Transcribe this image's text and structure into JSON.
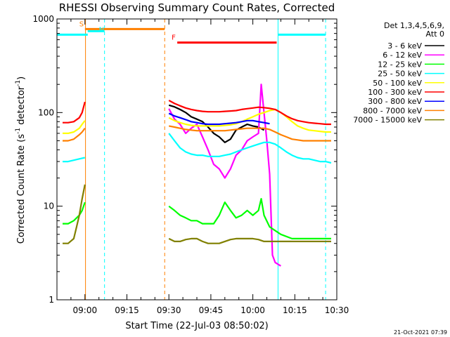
{
  "chart_data": {
    "type": "line",
    "title": "RHESSI Observing Summary Count Rates, Corrected",
    "xlabel": "Start Time (22-Jul-03 08:50:02)",
    "ylabel": "Corrected Count Rate (s⁻¹ detector⁻¹)",
    "ylabel_main": "Corrected Count Rate (s",
    "ylabel_mid": " detector",
    "ylabel_end": ")",
    "ylabel_sup": "-1",
    "yscale": "log",
    "xlim_minutes": [
      0,
      100
    ],
    "ylim": [
      1,
      1000
    ],
    "x_ticks": [
      {
        "t": 10,
        "label": "09:00"
      },
      {
        "t": 25,
        "label": "09:15"
      },
      {
        "t": 40,
        "label": "09:30"
      },
      {
        "t": 55,
        "label": "09:45"
      },
      {
        "t": 70,
        "label": "10:00"
      },
      {
        "t": 85,
        "label": "10:15"
      },
      {
        "t": 100,
        "label": "10:30"
      }
    ],
    "y_ticks": [
      {
        "v": 1,
        "label": "1"
      },
      {
        "v": 10,
        "label": "10"
      },
      {
        "v": 100,
        "label": "100"
      },
      {
        "v": 1000,
        "label": "1000"
      }
    ],
    "legend": {
      "header1": "Det 1,3,4,5,6,9,",
      "header2": "Att 0",
      "placement": "right"
    },
    "series": [
      {
        "name": "3 - 6 keV",
        "color": "#000000",
        "points": [
          [
            40,
            120
          ],
          [
            42,
            115
          ],
          [
            44,
            108
          ],
          [
            46,
            100
          ],
          [
            48,
            90
          ],
          [
            50,
            85
          ],
          [
            52,
            80
          ],
          [
            54,
            70
          ],
          [
            56,
            60
          ],
          [
            58,
            55
          ],
          [
            60,
            48
          ],
          [
            62,
            52
          ],
          [
            64,
            65
          ],
          [
            66,
            70
          ],
          [
            68,
            75
          ],
          [
            70,
            72
          ],
          [
            72,
            70
          ],
          [
            74,
            65
          ]
        ]
      },
      {
        "name": "6 - 12 keV",
        "color": "#ff00ff",
        "points": [
          [
            40,
            110
          ],
          [
            42,
            85
          ],
          [
            44,
            75
          ],
          [
            46,
            60
          ],
          [
            48,
            68
          ],
          [
            50,
            75
          ],
          [
            52,
            55
          ],
          [
            54,
            40
          ],
          [
            56,
            28
          ],
          [
            58,
            25
          ],
          [
            60,
            20
          ],
          [
            62,
            25
          ],
          [
            64,
            35
          ],
          [
            66,
            40
          ],
          [
            68,
            50
          ],
          [
            70,
            55
          ],
          [
            72,
            60
          ],
          [
            73,
            200
          ],
          [
            74,
            100
          ],
          [
            75,
            50
          ],
          [
            76,
            22
          ],
          [
            77,
            3
          ],
          [
            78,
            2.5
          ],
          [
            80,
            2.3
          ]
        ]
      },
      {
        "name": "12 - 25 keV",
        "color": "#00ff00",
        "points": [
          [
            2,
            6.5
          ],
          [
            4,
            6.5
          ],
          [
            6,
            7
          ],
          [
            8,
            8
          ],
          [
            9,
            9
          ],
          [
            10,
            11
          ],
          [
            40,
            10
          ],
          [
            42,
            9
          ],
          [
            44,
            8
          ],
          [
            46,
            7.5
          ],
          [
            48,
            7
          ],
          [
            50,
            7
          ],
          [
            52,
            6.5
          ],
          [
            54,
            6.5
          ],
          [
            56,
            6.5
          ],
          [
            58,
            8
          ],
          [
            60,
            11
          ],
          [
            62,
            9
          ],
          [
            64,
            7.5
          ],
          [
            66,
            8
          ],
          [
            68,
            9
          ],
          [
            70,
            8
          ],
          [
            72,
            9
          ],
          [
            73,
            12
          ],
          [
            74,
            8
          ],
          [
            76,
            6
          ],
          [
            80,
            5
          ],
          [
            84,
            4.5
          ],
          [
            88,
            4.5
          ],
          [
            90,
            4.5
          ],
          [
            94,
            4.5
          ],
          [
            98,
            4.5
          ]
        ]
      },
      {
        "name": "25 - 50 keV",
        "color": "#00ffff",
        "points": [
          [
            2,
            30
          ],
          [
            4,
            30
          ],
          [
            6,
            31
          ],
          [
            8,
            32
          ],
          [
            10,
            33
          ],
          [
            40,
            60
          ],
          [
            42,
            50
          ],
          [
            44,
            42
          ],
          [
            46,
            38
          ],
          [
            48,
            36
          ],
          [
            50,
            35
          ],
          [
            52,
            35
          ],
          [
            54,
            34
          ],
          [
            56,
            34
          ],
          [
            58,
            34
          ],
          [
            60,
            35
          ],
          [
            62,
            36
          ],
          [
            64,
            38
          ],
          [
            66,
            40
          ],
          [
            68,
            42
          ],
          [
            70,
            44
          ],
          [
            72,
            46
          ],
          [
            74,
            48
          ],
          [
            76,
            48
          ],
          [
            78,
            46
          ],
          [
            80,
            42
          ],
          [
            82,
            38
          ],
          [
            84,
            35
          ],
          [
            86,
            33
          ],
          [
            88,
            32
          ],
          [
            90,
            32
          ],
          [
            92,
            31
          ],
          [
            94,
            30
          ],
          [
            96,
            30
          ],
          [
            98,
            29
          ]
        ]
      },
      {
        "name": "50 - 100 keV",
        "color": "#ffff00",
        "points": [
          [
            2,
            60
          ],
          [
            4,
            60
          ],
          [
            6,
            62
          ],
          [
            8,
            68
          ],
          [
            9,
            75
          ],
          [
            10,
            82
          ],
          [
            40,
            88
          ],
          [
            42,
            82
          ],
          [
            44,
            78
          ],
          [
            46,
            75
          ],
          [
            48,
            73
          ],
          [
            50,
            72
          ],
          [
            52,
            72
          ],
          [
            54,
            72
          ],
          [
            56,
            72
          ],
          [
            58,
            72
          ],
          [
            60,
            73
          ],
          [
            62,
            74
          ],
          [
            64,
            76
          ],
          [
            66,
            80
          ],
          [
            68,
            85
          ],
          [
            70,
            90
          ],
          [
            72,
            96
          ],
          [
            74,
            100
          ],
          [
            76,
            105
          ],
          [
            78,
            108
          ],
          [
            80,
            100
          ],
          [
            82,
            90
          ],
          [
            84,
            80
          ],
          [
            86,
            72
          ],
          [
            88,
            68
          ],
          [
            90,
            65
          ],
          [
            92,
            64
          ],
          [
            94,
            63
          ],
          [
            96,
            62
          ],
          [
            98,
            62
          ]
        ]
      },
      {
        "name": "100 - 300 keV",
        "color": "#ff0000",
        "points": [
          [
            2,
            78
          ],
          [
            4,
            78
          ],
          [
            6,
            80
          ],
          [
            8,
            88
          ],
          [
            9,
            100
          ],
          [
            10,
            130
          ],
          [
            40,
            135
          ],
          [
            42,
            125
          ],
          [
            44,
            118
          ],
          [
            46,
            112
          ],
          [
            48,
            108
          ],
          [
            50,
            105
          ],
          [
            52,
            103
          ],
          [
            54,
            102
          ],
          [
            56,
            102
          ],
          [
            58,
            102
          ],
          [
            60,
            103
          ],
          [
            62,
            104
          ],
          [
            64,
            105
          ],
          [
            66,
            108
          ],
          [
            68,
            110
          ],
          [
            70,
            112
          ],
          [
            72,
            114
          ],
          [
            74,
            113
          ],
          [
            76,
            111
          ],
          [
            78,
            108
          ],
          [
            80,
            100
          ],
          [
            82,
            92
          ],
          [
            84,
            86
          ],
          [
            86,
            82
          ],
          [
            88,
            80
          ],
          [
            90,
            78
          ],
          [
            92,
            77
          ],
          [
            94,
            76
          ],
          [
            96,
            75
          ],
          [
            98,
            75
          ]
        ]
      },
      {
        "name": "300 - 800 keV",
        "color": "#0000ff",
        "points": [
          [
            40,
            98
          ],
          [
            42,
            92
          ],
          [
            44,
            88
          ],
          [
            46,
            84
          ],
          [
            48,
            80
          ],
          [
            50,
            78
          ],
          [
            52,
            76
          ],
          [
            54,
            75
          ],
          [
            56,
            75
          ],
          [
            58,
            75
          ],
          [
            60,
            76
          ],
          [
            62,
            77
          ],
          [
            64,
            78
          ],
          [
            66,
            80
          ],
          [
            68,
            82
          ],
          [
            70,
            82
          ],
          [
            72,
            80
          ],
          [
            74,
            78
          ],
          [
            76,
            76
          ]
        ]
      },
      {
        "name": "800 - 7000 keV",
        "color": "#ff8000",
        "points": [
          [
            2,
            50
          ],
          [
            4,
            50
          ],
          [
            6,
            52
          ],
          [
            8,
            58
          ],
          [
            9,
            62
          ],
          [
            10,
            68
          ],
          [
            40,
            72
          ],
          [
            42,
            70
          ],
          [
            44,
            68
          ],
          [
            46,
            66
          ],
          [
            48,
            65
          ],
          [
            50,
            64
          ],
          [
            52,
            64
          ],
          [
            54,
            64
          ],
          [
            56,
            64
          ],
          [
            58,
            64
          ],
          [
            60,
            64
          ],
          [
            62,
            65
          ],
          [
            64,
            66
          ],
          [
            66,
            67
          ],
          [
            68,
            68
          ],
          [
            70,
            68
          ],
          [
            72,
            68
          ],
          [
            74,
            68
          ],
          [
            76,
            66
          ],
          [
            78,
            62
          ],
          [
            80,
            58
          ],
          [
            82,
            55
          ],
          [
            84,
            52
          ],
          [
            86,
            51
          ],
          [
            88,
            50
          ],
          [
            90,
            50
          ],
          [
            92,
            50
          ],
          [
            94,
            50
          ],
          [
            96,
            50
          ],
          [
            98,
            50
          ]
        ]
      },
      {
        "name": "7000 - 15000 keV",
        "color": "#808000",
        "points": [
          [
            2,
            4
          ],
          [
            4,
            4
          ],
          [
            6,
            4.5
          ],
          [
            7,
            6
          ],
          [
            8,
            8
          ],
          [
            9,
            12
          ],
          [
            10,
            17
          ],
          [
            40,
            4.5
          ],
          [
            42,
            4.2
          ],
          [
            44,
            4.2
          ],
          [
            46,
            4.4
          ],
          [
            48,
            4.5
          ],
          [
            50,
            4.5
          ],
          [
            52,
            4.2
          ],
          [
            54,
            4
          ],
          [
            56,
            4
          ],
          [
            58,
            4
          ],
          [
            60,
            4.2
          ],
          [
            62,
            4.4
          ],
          [
            64,
            4.5
          ],
          [
            66,
            4.5
          ],
          [
            68,
            4.5
          ],
          [
            70,
            4.5
          ],
          [
            72,
            4.4
          ],
          [
            74,
            4.2
          ],
          [
            76,
            4.2
          ],
          [
            78,
            4.2
          ],
          [
            80,
            4.2
          ],
          [
            82,
            4.2
          ],
          [
            84,
            4.2
          ],
          [
            86,
            4.2
          ],
          [
            88,
            4.2
          ],
          [
            90,
            4.2
          ],
          [
            92,
            4.2
          ],
          [
            94,
            4.2
          ],
          [
            96,
            4.2
          ],
          [
            98,
            4.2
          ]
        ]
      }
    ],
    "annotations": [
      {
        "label": "S",
        "color": "#ff8000",
        "t_start": 10,
        "t_end": 38.5,
        "level": 780
      },
      {
        "label": "N",
        "color": "#00ffff",
        "t_start": 17,
        "t_end": 17,
        "level": 680
      },
      {
        "label": "F",
        "color": "#ff0000",
        "t_start": 43,
        "t_end": 78.5,
        "level": 560
      }
    ],
    "vertical_lines": [
      {
        "t": 10.2,
        "color": "#ff8000",
        "style": "solid"
      },
      {
        "t": 17,
        "color": "#00ffff",
        "style": "dashed"
      },
      {
        "t": 38.5,
        "color": "#ff8000",
        "style": "dashed"
      },
      {
        "t": 79,
        "color": "#00ffff",
        "style": "solid"
      },
      {
        "t": 96,
        "color": "#00ffff",
        "style": "dashed"
      }
    ],
    "cyan_steps": [
      {
        "t_start": 0,
        "t_end": 11,
        "level": 680
      },
      {
        "t_start": 11,
        "t_end": 17,
        "level": 740
      },
      {
        "t_start": 79,
        "t_end": 96,
        "level": 680
      }
    ]
  },
  "footer_timestamp": "21-Oct-2021 07:39"
}
